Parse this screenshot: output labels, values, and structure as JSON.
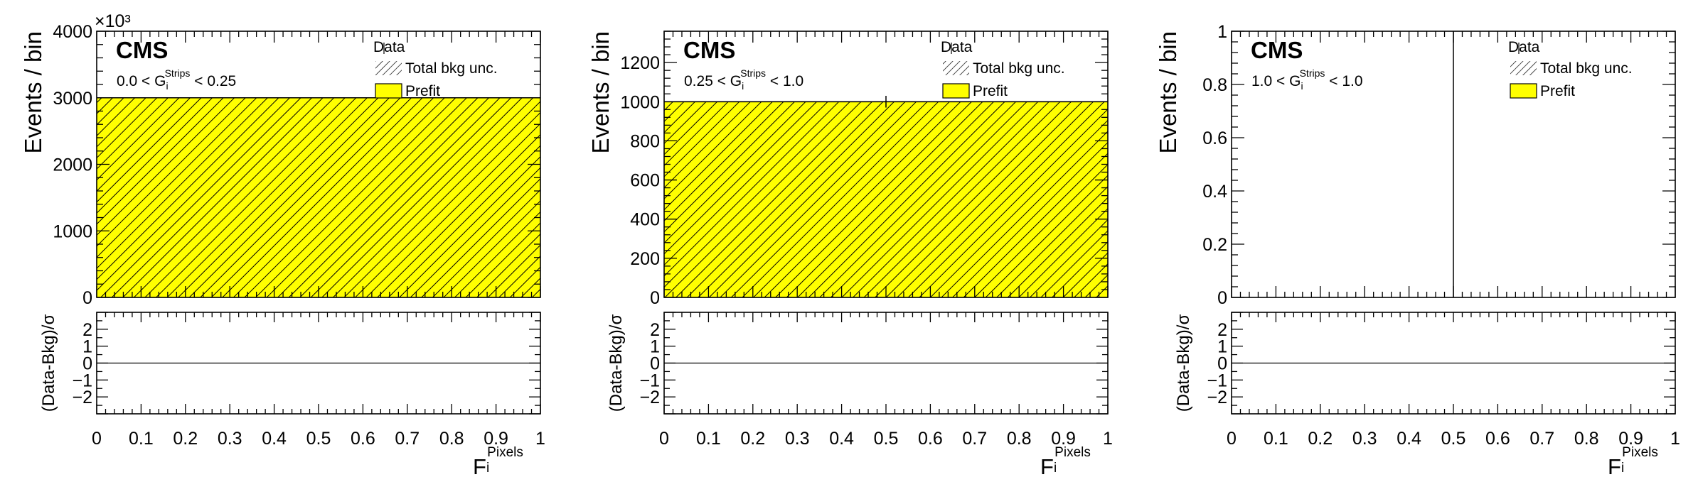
{
  "chart_data": [
    {
      "type": "bar",
      "panel": "left",
      "cms_label": "CMS",
      "cut_label": {
        "pre": "0.0 < G",
        "sub": "i",
        "sup": "Strips",
        "post": " < 0.25"
      },
      "ylabel": "Events / bin",
      "ratio_ylabel": "(Data-Bkg)/σ",
      "xlabel": {
        "main": "F",
        "sub": "i",
        "sup": "Pixels"
      },
      "exponent_label": "×10³",
      "xlim": [
        0,
        1
      ],
      "ylim": [
        0,
        4000
      ],
      "yticks": [
        "0",
        "1000",
        "2000",
        "3000",
        "4000"
      ],
      "xticks": [
        "0",
        "0.1",
        "0.2",
        "0.3",
        "0.4",
        "0.5",
        "0.6",
        "0.7",
        "0.8",
        "0.9",
        "1"
      ],
      "ratio_yticks": [
        "2",
        "1",
        "0",
        "−1",
        "−2"
      ],
      "ratio_ylim": [
        -3,
        3
      ],
      "bins": [
        {
          "x_low": 0,
          "x_high": 1,
          "prefit": 3000
        }
      ],
      "data_points": [],
      "legend": {
        "data": "Data",
        "unc": "Total bkg unc.",
        "prefit": "Prefit"
      },
      "legend_position": "top-right"
    },
    {
      "type": "bar",
      "panel": "middle",
      "cms_label": "CMS",
      "cut_label": {
        "pre": "0.25 < G",
        "sub": "i",
        "sup": "Strips",
        "post": " < 1.0"
      },
      "ylabel": "Events / bin",
      "ratio_ylabel": "(Data-Bkg)/σ",
      "xlabel": {
        "main": "F",
        "sub": "i",
        "sup": "Pixels"
      },
      "exponent_label": "",
      "xlim": [
        0,
        1
      ],
      "ylim": [
        0,
        1360
      ],
      "yticks": [
        "0",
        "200",
        "400",
        "600",
        "800",
        "1000",
        "1200"
      ],
      "xticks": [
        "0",
        "0.1",
        "0.2",
        "0.3",
        "0.4",
        "0.5",
        "0.6",
        "0.7",
        "0.8",
        "0.9",
        "1"
      ],
      "ratio_yticks": [
        "2",
        "1",
        "0",
        "−1",
        "−2"
      ],
      "ratio_ylim": [
        -3,
        3
      ],
      "bins": [
        {
          "x_low": 0,
          "x_high": 1,
          "prefit": 1000
        }
      ],
      "data_points": [
        {
          "x": 0.5,
          "y": 1000,
          "yerr": 30
        }
      ],
      "legend": {
        "data": "Data",
        "unc": "Total bkg unc.",
        "prefit": "Prefit"
      },
      "legend_position": "top-right"
    },
    {
      "type": "bar",
      "panel": "right",
      "cms_label": "CMS",
      "cut_label": {
        "pre": "1.0 < G",
        "sub": "i",
        "sup": "Strips",
        "post": " < 1.0"
      },
      "ylabel": "Events / bin",
      "ratio_ylabel": "(Data-Bkg)/σ",
      "xlabel": {
        "main": "F",
        "sub": "i",
        "sup": "Pixels"
      },
      "exponent_label": "",
      "xlim": [
        0,
        1
      ],
      "ylim": [
        0,
        1
      ],
      "yticks": [
        "0",
        "0.2",
        "0.4",
        "0.6",
        "0.8",
        "1"
      ],
      "xticks": [
        "0",
        "0.1",
        "0.2",
        "0.3",
        "0.4",
        "0.5",
        "0.6",
        "0.7",
        "0.8",
        "0.9",
        "1"
      ],
      "ratio_yticks": [
        "2",
        "1",
        "0",
        "−1",
        "−2"
      ],
      "ratio_ylim": [
        -3,
        3
      ],
      "bins": [
        {
          "x_low": 0,
          "x_high": 1,
          "prefit": 0
        }
      ],
      "data_points": [
        {
          "x": 0.5,
          "y": 0,
          "yerr": 1
        }
      ],
      "legend": {
        "data": "Data",
        "unc": "Total bkg unc.",
        "prefit": "Prefit"
      },
      "legend_position": "top-right"
    }
  ],
  "colors": {
    "prefit_fill": "#ffff00",
    "hatch": "#000000",
    "frame": "#000000"
  }
}
